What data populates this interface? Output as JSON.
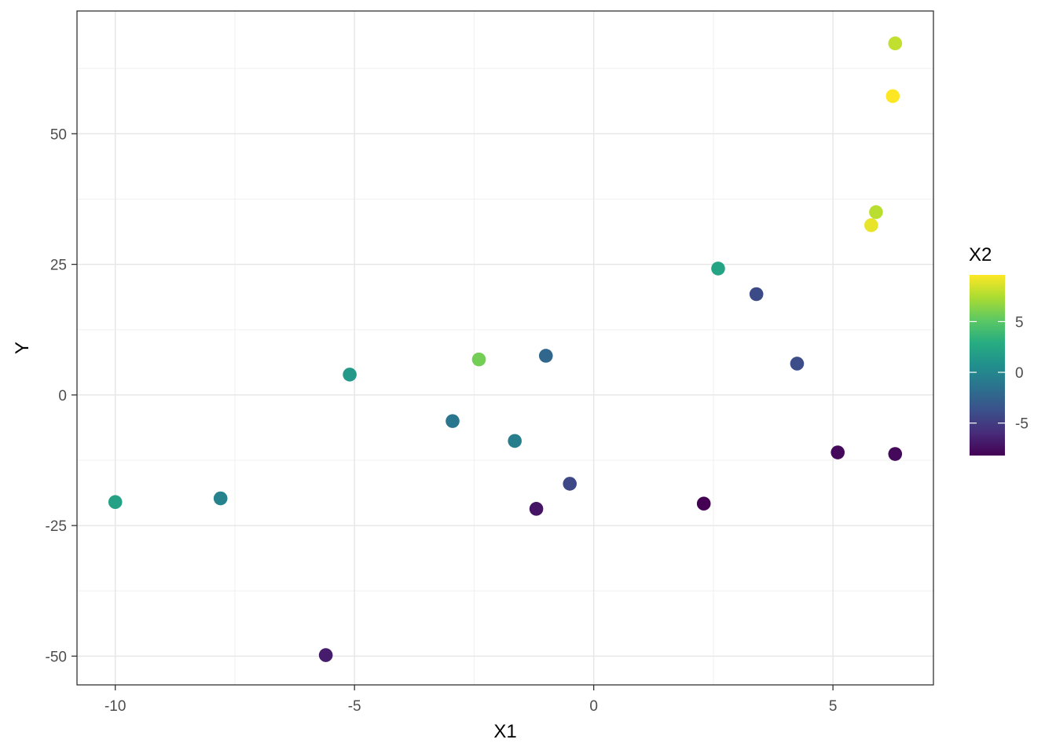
{
  "chart_data": {
    "type": "scatter",
    "xlabel": "X1",
    "ylabel": "Y",
    "xlim": [
      -10.8,
      7.1
    ],
    "ylim": [
      -55.5,
      73.5
    ],
    "x_ticks": [
      -10,
      -5,
      0,
      5
    ],
    "x_tick_labels": [
      "-10",
      "-5",
      "0",
      "5"
    ],
    "y_ticks": [
      -50,
      -25,
      0,
      25,
      50
    ],
    "y_tick_labels": [
      "-50",
      "-25",
      "0",
      "25",
      "50"
    ],
    "grid": true,
    "legend": {
      "title": "X2",
      "position": "right",
      "range": [
        -8.2,
        9.6
      ],
      "ticks": [
        -5,
        0,
        5
      ],
      "tick_labels": [
        "-5",
        "0",
        "5"
      ]
    },
    "colormap": [
      "#440154",
      "#472c7a",
      "#3b518b",
      "#2c718e",
      "#21908d",
      "#27ad81",
      "#5cc863",
      "#aadc32",
      "#fde725"
    ],
    "points": [
      {
        "x": -10.0,
        "y": -20.5,
        "c": 2.0
      },
      {
        "x": -7.8,
        "y": -19.8,
        "c": -0.3
      },
      {
        "x": -5.6,
        "y": -49.8,
        "c": -6.8
      },
      {
        "x": -5.1,
        "y": 3.9,
        "c": 1.5
      },
      {
        "x": -2.95,
        "y": -5.0,
        "c": -1.2
      },
      {
        "x": -2.4,
        "y": 6.8,
        "c": 5.8
      },
      {
        "x": -1.65,
        "y": -8.8,
        "c": -0.5
      },
      {
        "x": -1.0,
        "y": 7.5,
        "c": -2.2
      },
      {
        "x": -1.2,
        "y": -21.8,
        "c": -7.2
      },
      {
        "x": -0.5,
        "y": -17.0,
        "c": -4.3
      },
      {
        "x": 2.3,
        "y": -20.8,
        "c": -8.2
      },
      {
        "x": 2.6,
        "y": 24.2,
        "c": 2.2
      },
      {
        "x": 3.4,
        "y": 19.3,
        "c": -4.2
      },
      {
        "x": 4.25,
        "y": 6.0,
        "c": -4.0
      },
      {
        "x": 5.1,
        "y": -11.0,
        "c": -7.8
      },
      {
        "x": 6.3,
        "y": -11.3,
        "c": -7.8
      },
      {
        "x": 5.8,
        "y": 32.5,
        "c": 9.0
      },
      {
        "x": 5.9,
        "y": 35.0,
        "c": 7.8
      },
      {
        "x": 6.25,
        "y": 57.2,
        "c": 9.6
      },
      {
        "x": 6.3,
        "y": 67.3,
        "c": 8.0
      }
    ]
  }
}
